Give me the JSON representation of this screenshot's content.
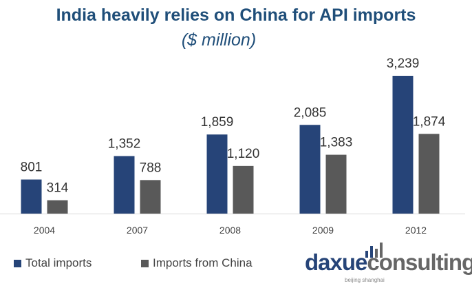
{
  "chart_data": {
    "type": "bar",
    "title": "India heavily relies on China for API imports",
    "subtitle": "($ million)",
    "categories": [
      "2004",
      "2007",
      "2008",
      "2009",
      "2012"
    ],
    "series": [
      {
        "name": "Total imports",
        "color": "#264478",
        "values": [
          801,
          1352,
          1859,
          2085,
          3239
        ],
        "labels": [
          "801",
          "1,352",
          "1,859",
          "2,085",
          "3,239"
        ]
      },
      {
        "name": "Imports from China",
        "color": "#595959",
        "values": [
          314,
          788,
          1120,
          1383,
          1874
        ],
        "labels": [
          "314",
          "788",
          "1,120",
          "1,383",
          "1,874"
        ]
      }
    ],
    "xlabel": "",
    "ylabel": "",
    "ylim": [
      0,
      3239
    ],
    "grid": false,
    "legend": "bottom-left"
  },
  "logo": {
    "part1": "daxue",
    "part2": "consulting",
    "tagline": "beijing shanghai"
  }
}
